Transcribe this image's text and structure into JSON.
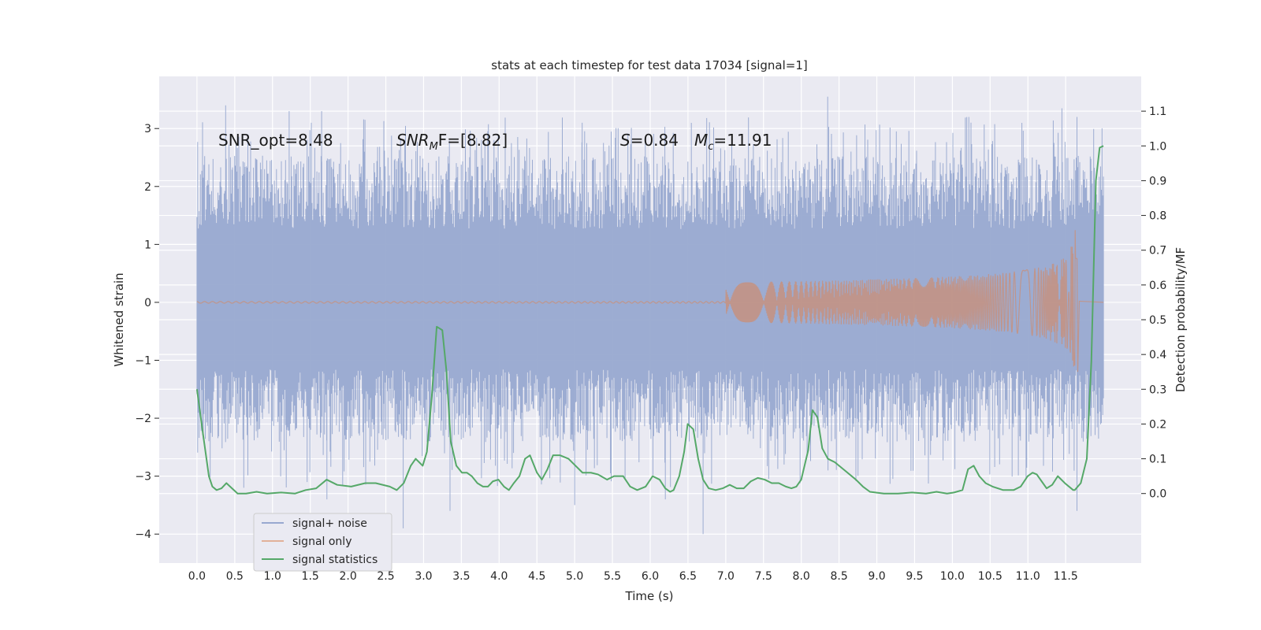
{
  "chart_data": {
    "type": "line",
    "title": "stats at each timestep for test data 17034 [signal=1]",
    "xlabel": "Time (s)",
    "ylabel": "Whitened strain",
    "y2label": "Detection probability/MF",
    "xlim": [
      -0.5,
      12.5
    ],
    "ylim": [
      -4.5,
      3.9
    ],
    "y2lim": [
      -0.2,
      1.2
    ],
    "x_ticks": [
      "0.0",
      "0.5",
      "1.0",
      "1.5",
      "2.0",
      "2.5",
      "3.0",
      "3.5",
      "4.0",
      "4.5",
      "5.0",
      "5.5",
      "6.0",
      "6.5",
      "7.0",
      "7.5",
      "8.0",
      "8.5",
      "9.0",
      "9.5",
      "10.0",
      "10.5",
      "11.0",
      "11.5"
    ],
    "y_ticks": [
      "−4",
      "−3",
      "−2",
      "−1",
      "0",
      "1",
      "2",
      "3"
    ],
    "y2_ticks": [
      "0.0",
      "0.1",
      "0.2",
      "0.3",
      "0.4",
      "0.5",
      "0.6",
      "0.7",
      "0.8",
      "0.9",
      "1.0",
      "1.1"
    ],
    "grid": true,
    "legend_position": "lower-left",
    "annotations": {
      "snr_opt": "SNR_opt=8.48",
      "snr_mf_name": "SNR",
      "snr_mf_sub": "M",
      "snr_mf_tail": "F=[8.82]",
      "s_name": "S",
      "s_value": "=0.84",
      "mc_name": "M",
      "mc_sub": "c",
      "mc_value": "=11.91"
    },
    "series": [
      {
        "name": "signal+ noise",
        "color": "#98a9d0",
        "t_range": [
          0.0,
          12.0
        ],
        "envelope_upper": 2.3,
        "envelope_lower": -2.1,
        "extremes": [
          {
            "x": 0.38,
            "y": 3.4
          },
          {
            "x": 1.22,
            "y": 3.3
          },
          {
            "x": 1.65,
            "y": 3.3
          },
          {
            "x": 5.1,
            "y": 3.1
          },
          {
            "x": 8.35,
            "y": 3.55
          },
          {
            "x": 11.45,
            "y": 3.35
          },
          {
            "x": 11.65,
            "y": 3.2
          },
          {
            "x": 0.62,
            "y": -3.2
          },
          {
            "x": 1.72,
            "y": -3.4
          },
          {
            "x": 2.73,
            "y": -3.9
          },
          {
            "x": 3.35,
            "y": -3.6
          },
          {
            "x": 5.0,
            "y": -3.5
          },
          {
            "x": 6.2,
            "y": -3.4
          },
          {
            "x": 6.7,
            "y": -4.0
          },
          {
            "x": 11.65,
            "y": -3.6
          }
        ]
      },
      {
        "name": "signal only",
        "color": "#dd8452",
        "merger_time": 11.65,
        "peak_amplitude": 1.35,
        "start_visible": 7.0
      },
      {
        "name": "signal statistics",
        "color": "#55a868",
        "axis": "right",
        "points": [
          [
            0.0,
            0.3
          ],
          [
            0.08,
            0.18
          ],
          [
            0.17,
            0.05
          ],
          [
            0.22,
            0.02
          ],
          [
            0.28,
            0.01
          ],
          [
            0.35,
            0.015
          ],
          [
            0.42,
            0.03
          ],
          [
            0.5,
            0.015
          ],
          [
            0.58,
            0.0
          ],
          [
            0.7,
            0.0
          ],
          [
            0.85,
            0.005
          ],
          [
            1.0,
            0.0
          ],
          [
            1.2,
            0.003
          ],
          [
            1.4,
            0.0
          ],
          [
            1.55,
            0.01
          ],
          [
            1.7,
            0.015
          ],
          [
            1.85,
            0.04
          ],
          [
            2.0,
            0.025
          ],
          [
            2.2,
            0.02
          ],
          [
            2.4,
            0.03
          ],
          [
            2.55,
            0.03
          ],
          [
            2.75,
            0.02
          ],
          [
            2.85,
            0.01
          ],
          [
            2.95,
            0.03
          ],
          [
            3.05,
            0.08
          ],
          [
            3.12,
            0.1
          ],
          [
            3.22,
            0.08
          ],
          [
            3.28,
            0.12
          ],
          [
            3.35,
            0.28
          ],
          [
            3.42,
            0.48
          ],
          [
            3.5,
            0.47
          ],
          [
            3.56,
            0.35
          ],
          [
            3.62,
            0.15
          ],
          [
            3.7,
            0.08
          ],
          [
            3.78,
            0.06
          ],
          [
            3.85,
            0.06
          ],
          [
            3.92,
            0.05
          ],
          [
            4.0,
            0.03
          ],
          [
            4.08,
            0.02
          ],
          [
            4.15,
            0.02
          ],
          [
            4.22,
            0.035
          ],
          [
            4.3,
            0.04
          ],
          [
            4.38,
            0.02
          ],
          [
            4.45,
            0.01
          ],
          [
            4.52,
            0.03
          ],
          [
            4.6,
            0.05
          ],
          [
            4.68,
            0.1
          ],
          [
            4.75,
            0.11
          ],
          [
            4.85,
            0.06
          ],
          [
            4.92,
            0.04
          ],
          [
            5.0,
            0.07
          ],
          [
            5.08,
            0.11
          ],
          [
            5.18,
            0.11
          ],
          [
            5.3,
            0.1
          ],
          [
            5.4,
            0.08
          ],
          [
            5.5,
            0.06
          ],
          [
            5.62,
            0.06
          ],
          [
            5.72,
            0.055
          ],
          [
            5.85,
            0.04
          ],
          [
            5.95,
            0.05
          ],
          [
            6.08,
            0.05
          ],
          [
            6.18,
            0.02
          ],
          [
            6.28,
            0.01
          ],
          [
            6.4,
            0.02
          ],
          [
            6.5,
            0.05
          ],
          [
            6.6,
            0.04
          ],
          [
            6.68,
            0.015
          ],
          [
            6.75,
            0.005
          ],
          [
            6.8,
            0.01
          ],
          [
            6.88,
            0.05
          ],
          [
            6.95,
            0.12
          ],
          [
            7.0,
            0.2
          ],
          [
            7.08,
            0.185
          ],
          [
            7.15,
            0.1
          ],
          [
            7.22,
            0.04
          ],
          [
            7.3,
            0.015
          ],
          [
            7.4,
            0.01
          ],
          [
            7.5,
            0.015
          ],
          [
            7.6,
            0.025
          ],
          [
            7.7,
            0.015
          ],
          [
            7.8,
            0.015
          ],
          [
            7.9,
            0.035
          ],
          [
            8.0,
            0.045
          ],
          [
            8.1,
            0.04
          ],
          [
            8.2,
            0.03
          ],
          [
            8.3,
            0.03
          ],
          [
            8.4,
            0.02
          ],
          [
            8.48,
            0.015
          ],
          [
            8.55,
            0.02
          ],
          [
            8.62,
            0.04
          ],
          [
            8.72,
            0.125
          ],
          [
            8.78,
            0.24
          ],
          [
            8.85,
            0.22
          ],
          [
            8.92,
            0.13
          ],
          [
            9.0,
            0.1
          ],
          [
            9.1,
            0.09
          ],
          [
            9.25,
            0.065
          ],
          [
            9.4,
            0.04
          ],
          [
            9.5,
            0.02
          ],
          [
            9.6,
            0.005
          ],
          [
            9.8,
            0.0
          ],
          [
            10.0,
            0.0
          ],
          [
            10.2,
            0.003
          ],
          [
            10.4,
            0.0
          ],
          [
            10.55,
            0.005
          ],
          [
            10.7,
            0.0
          ],
          [
            10.8,
            0.003
          ],
          [
            10.92,
            0.01
          ],
          [
            11.0,
            0.07
          ],
          [
            11.08,
            0.08
          ],
          [
            11.16,
            0.05
          ],
          [
            11.25,
            0.03
          ],
          [
            11.35,
            0.02
          ],
          [
            11.5,
            0.01
          ],
          [
            11.65,
            0.01
          ],
          [
            11.75,
            0.02
          ],
          [
            11.85,
            0.05
          ],
          [
            11.92,
            0.06
          ],
          [
            11.98,
            0.055
          ],
          [
            12.05,
            0.035
          ],
          [
            12.12,
            0.015
          ],
          [
            12.2,
            0.025
          ],
          [
            12.28,
            0.05
          ],
          [
            12.38,
            0.03
          ],
          [
            12.5,
            0.01
          ]
        ],
        "points_note_tail": [
          [
            11.62,
            0.01
          ],
          [
            11.7,
            0.03
          ],
          [
            11.78,
            0.1
          ],
          [
            11.84,
            0.38
          ],
          [
            11.9,
            0.9
          ],
          [
            11.95,
            0.995
          ],
          [
            12.0,
            1.0
          ]
        ]
      }
    ]
  }
}
